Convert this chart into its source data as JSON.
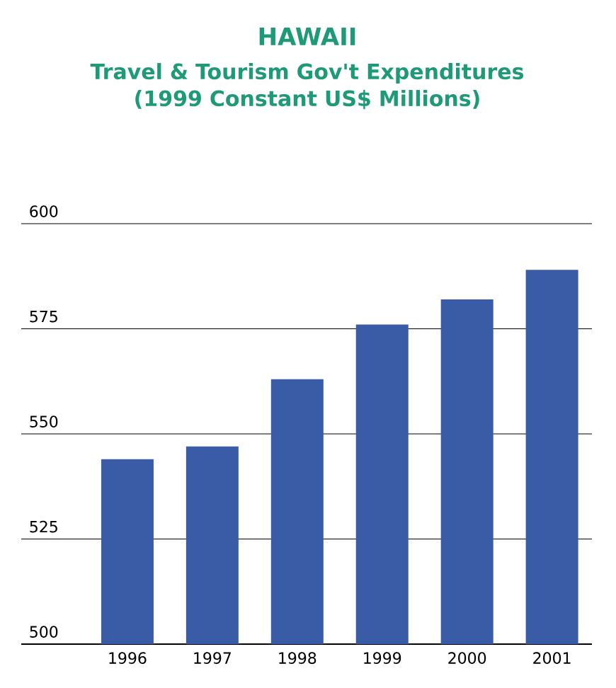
{
  "chart_data": {
    "type": "bar",
    "title": "HAWAII",
    "subtitle": "Travel & Tourism Gov't Expenditures (1999 Constant US$ Millions)",
    "categories": [
      "1996",
      "1997",
      "1998",
      "1999",
      "2000",
      "2001"
    ],
    "values": [
      544,
      547,
      563,
      576,
      582,
      589
    ],
    "color": "#3a5ba6",
    "ylim": [
      500,
      600
    ],
    "yticks": [
      500,
      525,
      550,
      575,
      600
    ],
    "grid": "y"
  }
}
